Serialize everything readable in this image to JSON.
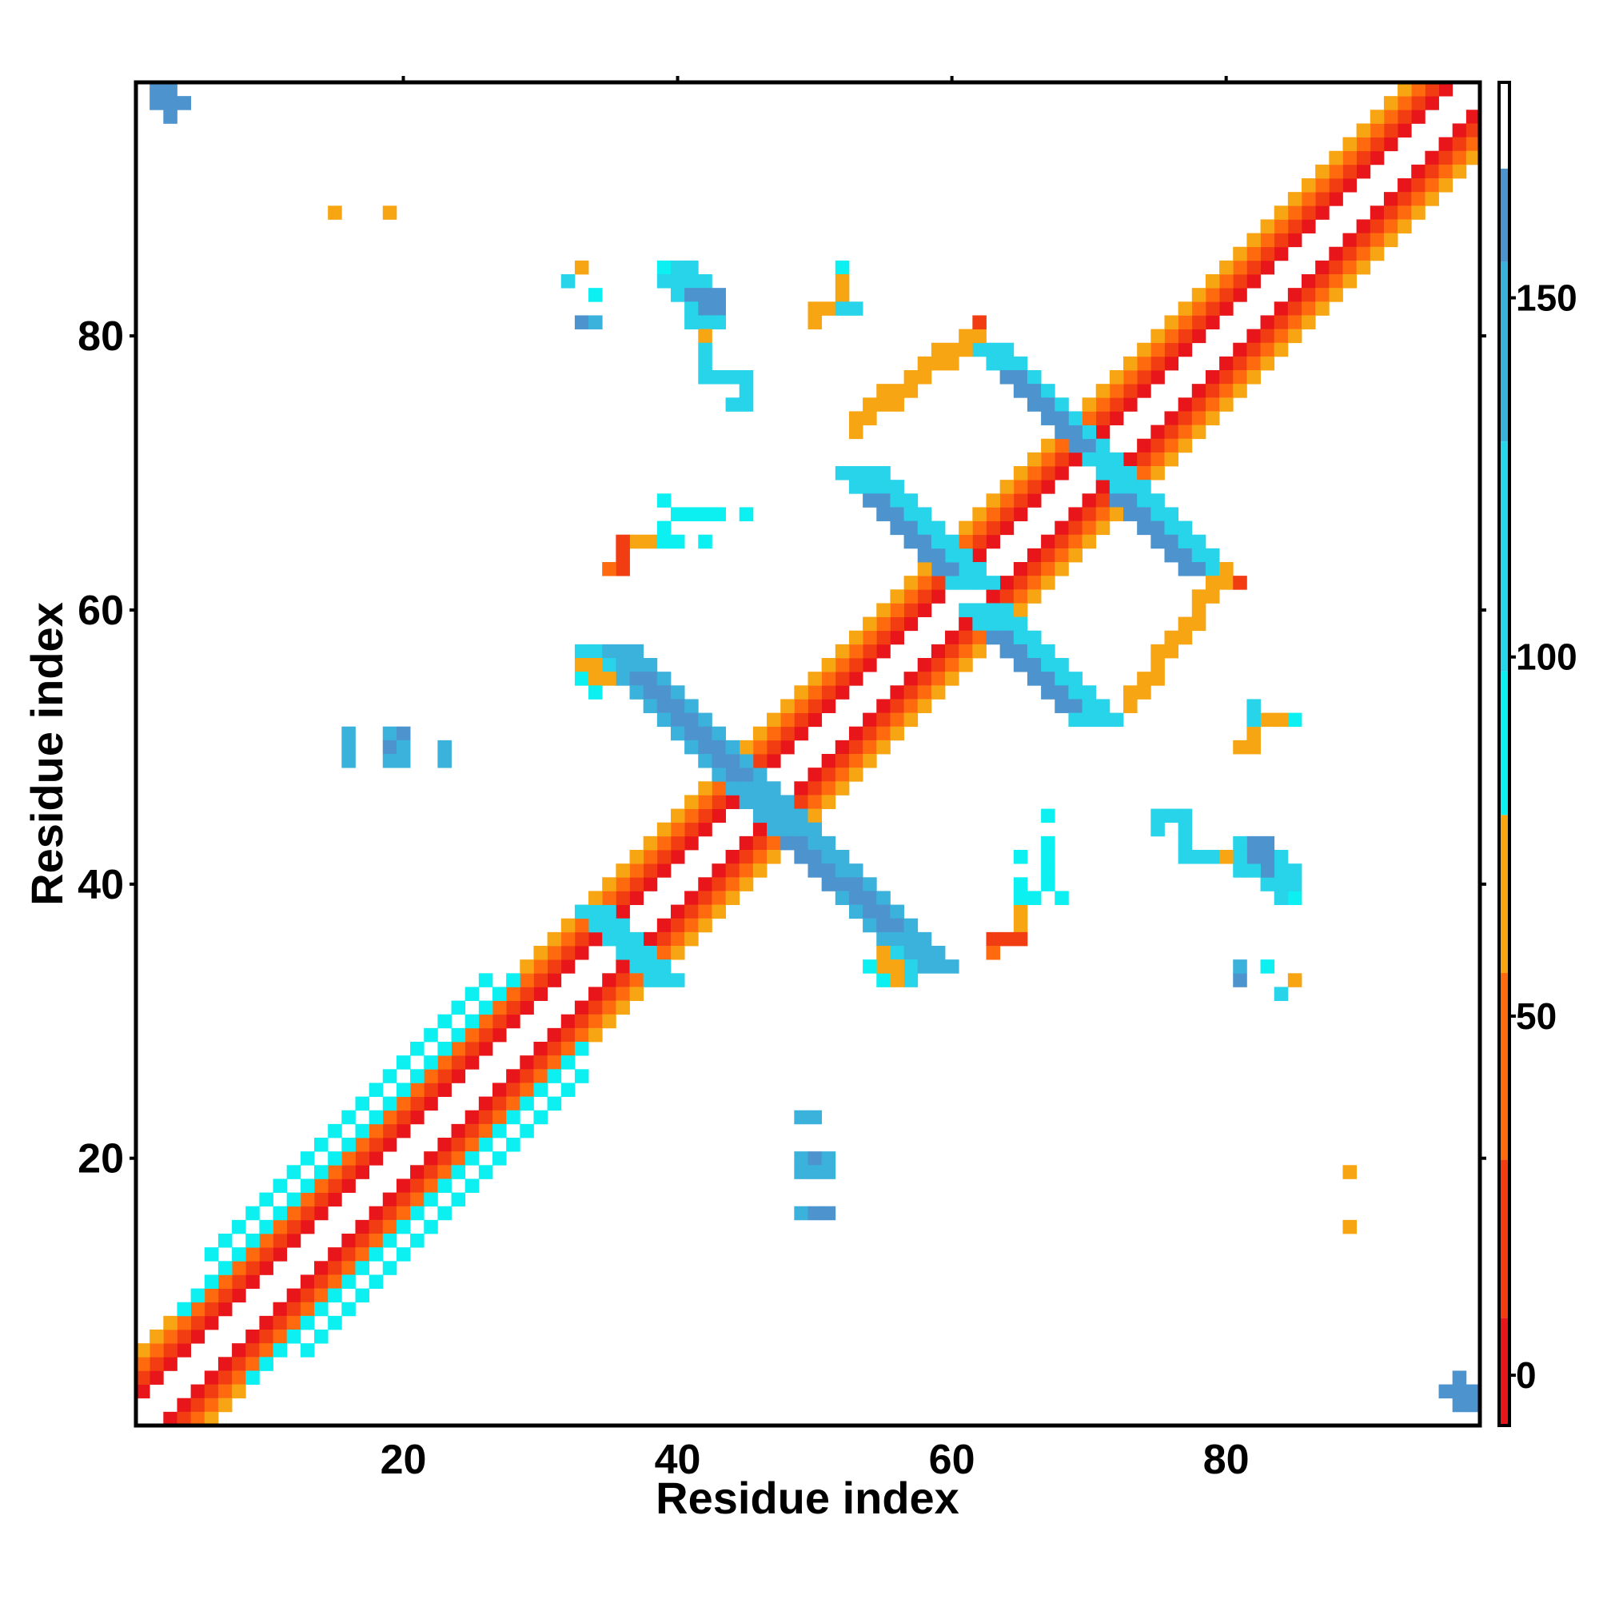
{
  "chart_data": {
    "type": "heatmap",
    "title": "",
    "xlabel": "Residue index",
    "ylabel": "Residue index",
    "n": 98,
    "xlim": [
      0.5,
      98.5
    ],
    "ylim": [
      0.5,
      98.5
    ],
    "x_ticks": [
      20,
      40,
      60,
      80
    ],
    "y_ticks": [
      20,
      40,
      60,
      80
    ],
    "x_tick_labels": [
      "20",
      "40",
      "60",
      "80"
    ],
    "y_tick_labels": [
      "20",
      "40",
      "60",
      "80"
    ],
    "colorbar": {
      "range": [
        -7,
        180
      ],
      "ticks": [
        0,
        50,
        100,
        150
      ],
      "tick_labels": [
        "0",
        "50",
        "100",
        "150"
      ],
      "bands": [
        {
          "from": -7,
          "to": 8,
          "color": "#e8161a"
        },
        {
          "from": 8,
          "to": 30,
          "color": "#f23c12"
        },
        {
          "from": 30,
          "to": 56,
          "color": "#ff6a0e"
        },
        {
          "from": 56,
          "to": 78,
          "color": "#f7a513"
        },
        {
          "from": 78,
          "to": 98,
          "color": "#0cf0f2"
        },
        {
          "from": 98,
          "to": 130,
          "color": "#27d4ea"
        },
        {
          "from": 130,
          "to": 155,
          "color": "#3ab2dc"
        },
        {
          "from": 155,
          "to": 168,
          "color": "#4d94cf"
        },
        {
          "from": 168,
          "to": 180,
          "color": "#ffffff"
        }
      ]
    },
    "grid": false,
    "legend": "colorbar-right",
    "segments": [
      {
        "start": [
          1,
          3
        ],
        "end": [
          96,
          98
        ],
        "value": 5,
        "width": 1
      },
      {
        "start": [
          1,
          4
        ],
        "end": [
          95,
          98
        ],
        "value": 20,
        "width": 1
      },
      {
        "start": [
          1,
          5
        ],
        "end": [
          94,
          98
        ],
        "value": 35,
        "width": 1
      },
      {
        "start": [
          1,
          6
        ],
        "end": [
          93,
          98
        ],
        "value": 60,
        "width": 1
      },
      {
        "start": [
          4,
          9
        ],
        "end": [
          28,
          33
        ],
        "value": 95,
        "width": 1
      },
      {
        "start": [
          6,
          13
        ],
        "end": [
          26,
          33
        ],
        "value": 85,
        "width": 1
      },
      {
        "start": [
          3,
          1
        ],
        "end": [
          98,
          96
        ],
        "value": 5,
        "width": 1
      },
      {
        "start": [
          4,
          1
        ],
        "end": [
          98,
          95
        ],
        "value": 20,
        "width": 1
      },
      {
        "start": [
          5,
          1
        ],
        "end": [
          98,
          94
        ],
        "value": 35,
        "width": 1
      },
      {
        "start": [
          6,
          1
        ],
        "end": [
          98,
          93
        ],
        "value": 60,
        "width": 1
      },
      {
        "start": [
          9,
          4
        ],
        "end": [
          33,
          28
        ],
        "value": 95,
        "width": 1
      },
      {
        "start": [
          13,
          6
        ],
        "end": [
          33,
          26
        ],
        "value": 85,
        "width": 1
      },
      {
        "start": [
          34,
          57
        ],
        "end": [
          45,
          46
        ],
        "value": 130,
        "width": 4
      },
      {
        "start": [
          37,
          55
        ],
        "end": [
          44,
          48
        ],
        "value": 160,
        "width": 2
      },
      {
        "start": [
          46,
          45
        ],
        "end": [
          57,
          34
        ],
        "value": 130,
        "width": 4
      },
      {
        "start": [
          48,
          43
        ],
        "end": [
          55,
          37
        ],
        "value": 160,
        "width": 2
      },
      {
        "start": [
          52,
          70
        ],
        "end": [
          60,
          62
        ],
        "value": 120,
        "width": 4
      },
      {
        "start": [
          54,
          68
        ],
        "end": [
          59,
          63
        ],
        "value": 160,
        "width": 2
      },
      {
        "start": [
          61,
          60
        ],
        "end": [
          69,
          52
        ],
        "value": 120,
        "width": 4
      },
      {
        "start": [
          63,
          58
        ],
        "end": [
          68,
          53
        ],
        "value": 160,
        "width": 2
      },
      {
        "start": [
          62,
          79
        ],
        "end": [
          70,
          71
        ],
        "value": 125,
        "width": 3
      },
      {
        "start": [
          64,
          77
        ],
        "end": [
          69,
          72
        ],
        "value": 160,
        "width": 2
      },
      {
        "start": [
          71,
          70
        ],
        "end": [
          79,
          62
        ],
        "value": 125,
        "width": 3
      },
      {
        "start": [
          72,
          68
        ],
        "end": [
          77,
          63
        ],
        "value": 160,
        "width": 2
      },
      {
        "start": [
          53,
          73
        ],
        "end": [
          62,
          80
        ],
        "value": 65,
        "width": 2
      },
      {
        "start": [
          73,
          53
        ],
        "end": [
          80,
          62
        ],
        "value": 65,
        "width": 2
      },
      {
        "start": [
          33,
          38
        ],
        "end": [
          37,
          34
        ],
        "value": 110,
        "width": 3
      },
      {
        "start": [
          38,
          33
        ],
        "end": [
          34,
          37
        ],
        "value": 110,
        "width": 3
      }
    ],
    "cells": [
      {
        "x": 2,
        "y": 97,
        "value": 160
      },
      {
        "x": 3,
        "y": 97,
        "value": 160
      },
      {
        "x": 4,
        "y": 97,
        "value": 160
      },
      {
        "x": 3,
        "y": 96,
        "value": 160
      },
      {
        "x": 2,
        "y": 98,
        "value": 160
      },
      {
        "x": 3,
        "y": 98,
        "value": 160
      },
      {
        "x": 97,
        "y": 2,
        "value": 160
      },
      {
        "x": 97,
        "y": 3,
        "value": 160
      },
      {
        "x": 97,
        "y": 4,
        "value": 160
      },
      {
        "x": 96,
        "y": 3,
        "value": 160
      },
      {
        "x": 98,
        "y": 2,
        "value": 160
      },
      {
        "x": 98,
        "y": 3,
        "value": 160
      },
      {
        "x": 15,
        "y": 89,
        "value": 70
      },
      {
        "x": 19,
        "y": 89,
        "value": 70
      },
      {
        "x": 89,
        "y": 19,
        "value": 70
      },
      {
        "x": 89,
        "y": 15,
        "value": 70
      },
      {
        "x": 16,
        "y": 51,
        "value": 150
      },
      {
        "x": 16,
        "y": 50,
        "value": 150
      },
      {
        "x": 16,
        "y": 49,
        "value": 130
      },
      {
        "x": 19,
        "y": 51,
        "value": 140
      },
      {
        "x": 20,
        "y": 51,
        "value": 160
      },
      {
        "x": 19,
        "y": 50,
        "value": 160
      },
      {
        "x": 20,
        "y": 50,
        "value": 130
      },
      {
        "x": 19,
        "y": 49,
        "value": 130
      },
      {
        "x": 20,
        "y": 49,
        "value": 130
      },
      {
        "x": 23,
        "y": 50,
        "value": 140
      },
      {
        "x": 23,
        "y": 49,
        "value": 130
      },
      {
        "x": 49,
        "y": 23,
        "value": 130
      },
      {
        "x": 50,
        "y": 23,
        "value": 140
      },
      {
        "x": 49,
        "y": 20,
        "value": 130
      },
      {
        "x": 50,
        "y": 20,
        "value": 160
      },
      {
        "x": 51,
        "y": 20,
        "value": 130
      },
      {
        "x": 49,
        "y": 19,
        "value": 130
      },
      {
        "x": 50,
        "y": 19,
        "value": 130
      },
      {
        "x": 51,
        "y": 19,
        "value": 130
      },
      {
        "x": 49,
        "y": 16,
        "value": 140
      },
      {
        "x": 50,
        "y": 16,
        "value": 160
      },
      {
        "x": 51,
        "y": 16,
        "value": 160
      },
      {
        "x": 33,
        "y": 85,
        "value": 70
      },
      {
        "x": 32,
        "y": 84,
        "value": 100
      },
      {
        "x": 34,
        "y": 83,
        "value": 90
      },
      {
        "x": 33,
        "y": 81,
        "value": 160
      },
      {
        "x": 34,
        "y": 81,
        "value": 140
      },
      {
        "x": 39,
        "y": 85,
        "value": 95
      },
      {
        "x": 40,
        "y": 85,
        "value": 120
      },
      {
        "x": 41,
        "y": 85,
        "value": 120
      },
      {
        "x": 39,
        "y": 84,
        "value": 120
      },
      {
        "x": 40,
        "y": 84,
        "value": 120
      },
      {
        "x": 41,
        "y": 84,
        "value": 120
      },
      {
        "x": 42,
        "y": 84,
        "value": 120
      },
      {
        "x": 40,
        "y": 83,
        "value": 120
      },
      {
        "x": 41,
        "y": 83,
        "value": 160
      },
      {
        "x": 42,
        "y": 83,
        "value": 160
      },
      {
        "x": 43,
        "y": 83,
        "value": 160
      },
      {
        "x": 41,
        "y": 82,
        "value": 120
      },
      {
        "x": 42,
        "y": 82,
        "value": 160
      },
      {
        "x": 43,
        "y": 82,
        "value": 160
      },
      {
        "x": 41,
        "y": 81,
        "value": 120
      },
      {
        "x": 42,
        "y": 81,
        "value": 120
      },
      {
        "x": 43,
        "y": 81,
        "value": 120
      },
      {
        "x": 42,
        "y": 80,
        "value": 60
      },
      {
        "x": 42,
        "y": 79,
        "value": 110
      },
      {
        "x": 42,
        "y": 78,
        "value": 110
      },
      {
        "x": 42,
        "y": 77,
        "value": 110
      },
      {
        "x": 43,
        "y": 77,
        "value": 110
      },
      {
        "x": 44,
        "y": 77,
        "value": 110
      },
      {
        "x": 45,
        "y": 77,
        "value": 110
      },
      {
        "x": 45,
        "y": 76,
        "value": 110
      },
      {
        "x": 44,
        "y": 75,
        "value": 110
      },
      {
        "x": 45,
        "y": 75,
        "value": 110
      },
      {
        "x": 52,
        "y": 85,
        "value": 90
      },
      {
        "x": 52,
        "y": 84,
        "value": 70
      },
      {
        "x": 52,
        "y": 83,
        "value": 70
      },
      {
        "x": 50,
        "y": 82,
        "value": 60
      },
      {
        "x": 51,
        "y": 82,
        "value": 60
      },
      {
        "x": 52,
        "y": 82,
        "value": 110
      },
      {
        "x": 53,
        "y": 82,
        "value": 100
      },
      {
        "x": 50,
        "y": 81,
        "value": 60
      },
      {
        "x": 39,
        "y": 68,
        "value": 90
      },
      {
        "x": 40,
        "y": 67,
        "value": 90
      },
      {
        "x": 41,
        "y": 67,
        "value": 95
      },
      {
        "x": 42,
        "y": 67,
        "value": 95
      },
      {
        "x": 43,
        "y": 67,
        "value": 95
      },
      {
        "x": 45,
        "y": 67,
        "value": 90
      },
      {
        "x": 39,
        "y": 66,
        "value": 90
      },
      {
        "x": 37,
        "y": 65,
        "value": 60
      },
      {
        "x": 38,
        "y": 65,
        "value": 60
      },
      {
        "x": 39,
        "y": 65,
        "value": 95
      },
      {
        "x": 40,
        "y": 65,
        "value": 95
      },
      {
        "x": 42,
        "y": 65,
        "value": 95
      },
      {
        "x": 36,
        "y": 65,
        "value": 10
      },
      {
        "x": 36,
        "y": 64,
        "value": 10
      },
      {
        "x": 36,
        "y": 63,
        "value": 10
      },
      {
        "x": 35,
        "y": 63,
        "value": 40
      },
      {
        "x": 68,
        "y": 39,
        "value": 90
      },
      {
        "x": 67,
        "y": 40,
        "value": 90
      },
      {
        "x": 67,
        "y": 41,
        "value": 95
      },
      {
        "x": 67,
        "y": 42,
        "value": 95
      },
      {
        "x": 67,
        "y": 43,
        "value": 95
      },
      {
        "x": 67,
        "y": 45,
        "value": 90
      },
      {
        "x": 66,
        "y": 39,
        "value": 90
      },
      {
        "x": 65,
        "y": 37,
        "value": 60
      },
      {
        "x": 65,
        "y": 38,
        "value": 60
      },
      {
        "x": 65,
        "y": 39,
        "value": 95
      },
      {
        "x": 65,
        "y": 40,
        "value": 95
      },
      {
        "x": 65,
        "y": 42,
        "value": 95
      },
      {
        "x": 65,
        "y": 36,
        "value": 10
      },
      {
        "x": 64,
        "y": 36,
        "value": 10
      },
      {
        "x": 63,
        "y": 36,
        "value": 10
      },
      {
        "x": 63,
        "y": 35,
        "value": 40
      },
      {
        "x": 85,
        "y": 33,
        "value": 70
      },
      {
        "x": 84,
        "y": 32,
        "value": 100
      },
      {
        "x": 83,
        "y": 34,
        "value": 90
      },
      {
        "x": 81,
        "y": 33,
        "value": 160
      },
      {
        "x": 81,
        "y": 34,
        "value": 140
      },
      {
        "x": 85,
        "y": 39,
        "value": 95
      },
      {
        "x": 85,
        "y": 40,
        "value": 120
      },
      {
        "x": 85,
        "y": 41,
        "value": 120
      },
      {
        "x": 84,
        "y": 39,
        "value": 120
      },
      {
        "x": 84,
        "y": 40,
        "value": 120
      },
      {
        "x": 84,
        "y": 41,
        "value": 120
      },
      {
        "x": 84,
        "y": 42,
        "value": 120
      },
      {
        "x": 83,
        "y": 40,
        "value": 120
      },
      {
        "x": 83,
        "y": 41,
        "value": 160
      },
      {
        "x": 83,
        "y": 42,
        "value": 160
      },
      {
        "x": 83,
        "y": 43,
        "value": 160
      },
      {
        "x": 82,
        "y": 41,
        "value": 120
      },
      {
        "x": 82,
        "y": 42,
        "value": 160
      },
      {
        "x": 82,
        "y": 43,
        "value": 160
      },
      {
        "x": 81,
        "y": 41,
        "value": 120
      },
      {
        "x": 81,
        "y": 42,
        "value": 120
      },
      {
        "x": 81,
        "y": 43,
        "value": 120
      },
      {
        "x": 80,
        "y": 42,
        "value": 60
      },
      {
        "x": 79,
        "y": 42,
        "value": 110
      },
      {
        "x": 78,
        "y": 42,
        "value": 110
      },
      {
        "x": 77,
        "y": 42,
        "value": 110
      },
      {
        "x": 77,
        "y": 43,
        "value": 110
      },
      {
        "x": 77,
        "y": 44,
        "value": 110
      },
      {
        "x": 77,
        "y": 45,
        "value": 110
      },
      {
        "x": 76,
        "y": 45,
        "value": 110
      },
      {
        "x": 75,
        "y": 44,
        "value": 110
      },
      {
        "x": 75,
        "y": 45,
        "value": 110
      },
      {
        "x": 85,
        "y": 52,
        "value": 90
      },
      {
        "x": 84,
        "y": 52,
        "value": 70
      },
      {
        "x": 83,
        "y": 52,
        "value": 70
      },
      {
        "x": 82,
        "y": 50,
        "value": 60
      },
      {
        "x": 82,
        "y": 51,
        "value": 60
      },
      {
        "x": 82,
        "y": 52,
        "value": 110
      },
      {
        "x": 82,
        "y": 53,
        "value": 100
      },
      {
        "x": 81,
        "y": 50,
        "value": 60
      },
      {
        "x": 62,
        "y": 81,
        "value": 10
      },
      {
        "x": 81,
        "y": 62,
        "value": 10
      },
      {
        "x": 33,
        "y": 57,
        "value": 100
      },
      {
        "x": 33,
        "y": 56,
        "value": 70
      },
      {
        "x": 34,
        "y": 56,
        "value": 70
      },
      {
        "x": 33,
        "y": 55,
        "value": 85
      },
      {
        "x": 34,
        "y": 55,
        "value": 60
      },
      {
        "x": 57,
        "y": 33,
        "value": 100
      },
      {
        "x": 56,
        "y": 33,
        "value": 70
      },
      {
        "x": 56,
        "y": 34,
        "value": 70
      },
      {
        "x": 55,
        "y": 33,
        "value": 85
      },
      {
        "x": 55,
        "y": 34,
        "value": 60
      },
      {
        "x": 54,
        "y": 34,
        "value": 90
      },
      {
        "x": 55,
        "y": 35,
        "value": 60
      },
      {
        "x": 57,
        "y": 34,
        "value": 110
      },
      {
        "x": 56,
        "y": 35,
        "value": 110
      },
      {
        "x": 34,
        "y": 54,
        "value": 90
      },
      {
        "x": 35,
        "y": 55,
        "value": 60
      },
      {
        "x": 34,
        "y": 57,
        "value": 110
      },
      {
        "x": 35,
        "y": 56,
        "value": 110
      }
    ]
  }
}
